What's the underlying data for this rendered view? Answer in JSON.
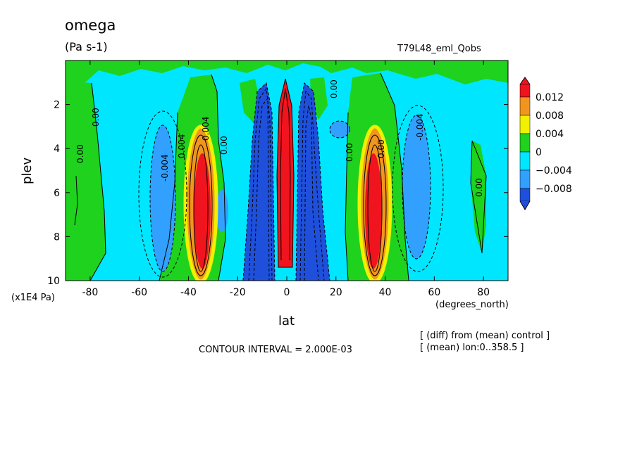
{
  "header": {
    "title": "omega",
    "units": "(Pa s-1)",
    "run_name": "T79L48_eml_Qobs"
  },
  "footer": {
    "contour_interval": "CONTOUR INTERVAL = 2.000E-03",
    "note_diff": "[ (diff) from (mean) control ]",
    "note_mean": "[ (mean) lon:0..358.5 ]"
  },
  "colors": {
    "red": "#f0141e",
    "orange": "#f0961e",
    "yellow": "#f0f000",
    "green": "#1ed21e",
    "cyan": "#00e6ff",
    "lightblue": "#32a0ff",
    "blue": "#1e50dc"
  },
  "chart_data": {
    "type": "heatmap",
    "title": "omega",
    "units": "(Pa s-1)",
    "xlabel": "lat",
    "xunits": "(degrees_north)",
    "ylabel": "plev",
    "yunits": "(x1E4 Pa)",
    "xlim": [
      -90,
      90
    ],
    "ylim": [
      10,
      0
    ],
    "x_ticks": [
      -80,
      -60,
      -40,
      -20,
      0,
      20,
      40,
      60,
      80
    ],
    "y_ticks": [
      2,
      4,
      6,
      8,
      10
    ],
    "contour_interval": 0.002,
    "colorbar": {
      "levels": [
        "0.012",
        "0.008",
        "0.004",
        "0",
        "-0.004",
        "-0.008"
      ],
      "colors": [
        "#f0141e",
        "#f0961e",
        "#f0f000",
        "#1ed21e",
        "#00e6ff",
        "#32a0ff",
        "#1e50dc"
      ]
    },
    "contour_labels": [
      "0.00",
      "0.004",
      "-0.004",
      "0.00",
      "0.00"
    ],
    "features": [
      {
        "lat": 0,
        "plev": [
          1,
          10
        ],
        "value": 0.014
      },
      {
        "lat": -35,
        "plev": [
          4,
          9.5
        ],
        "value": 0.012
      },
      {
        "lat": 35,
        "plev": [
          4,
          9.5
        ],
        "value": 0.012
      },
      {
        "lat": -8,
        "plev": [
          1,
          10
        ],
        "value": -0.012
      },
      {
        "lat": 8,
        "plev": [
          1,
          10
        ],
        "value": -0.012
      },
      {
        "lat": -52,
        "plev": [
          3,
          9
        ],
        "value": -0.006
      },
      {
        "lat": 52,
        "plev": [
          3,
          9
        ],
        "value": -0.006
      }
    ]
  }
}
